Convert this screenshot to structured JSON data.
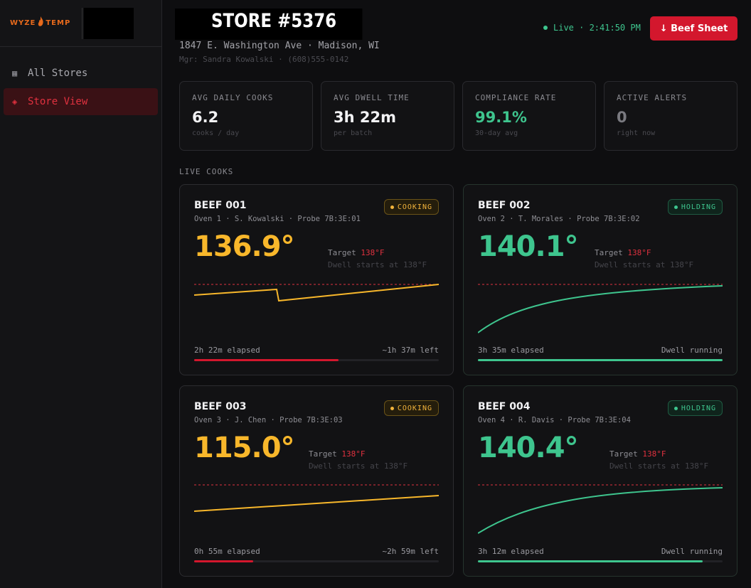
{
  "brand": {
    "name_left": "WYZE",
    "name_right": "TEMP",
    "flame": "flame-icon"
  },
  "sidebar": {
    "items": [
      {
        "label": "All Stores",
        "icon": "grid-icon",
        "active": false
      },
      {
        "label": "Store View",
        "icon": "diamond-icon",
        "active": true
      }
    ]
  },
  "header": {
    "title": "STORE #5376",
    "address": "1847 E. Washington Ave · Madison, WI",
    "manager": "Mgr: Sandra Kowalski · (608)555-0142",
    "live_label": "Live · 2:41:50 PM",
    "button_label": "↓ Beef Sheet"
  },
  "stats": [
    {
      "label": "AVG DAILY COOKS",
      "value": "6.2",
      "sub": "cooks / day"
    },
    {
      "label": "AVG DWELL TIME",
      "value": "3h 22m",
      "sub": "per batch"
    },
    {
      "label": "COMPLIANCE RATE",
      "value": "99.1%",
      "sub": "30-day avg"
    },
    {
      "label": "ACTIVE ALERTS",
      "value": "0",
      "sub": "right now"
    }
  ],
  "section_label": "LIVE COOKS",
  "cooks": [
    {
      "name": "BEEF 001",
      "meta": "Oven 1 · S. Kowalski · Probe 7B:3E:01",
      "status": "COOKING",
      "temp": "136.9°",
      "target_label": "Target",
      "target_value": "138°F",
      "dwell_text": "Dwell starts at 138°F",
      "elapsed": "2h 22m elapsed",
      "remaining": "~1h 37m left",
      "progress": 0.59
    },
    {
      "name": "BEEF 002",
      "meta": "Oven 2 · T. Morales · Probe 7B:3E:02",
      "status": "HOLDING",
      "temp": "140.1°",
      "target_label": "Target",
      "target_value": "138°F",
      "dwell_text": "Dwell starts at 138°F",
      "elapsed": "3h 35m elapsed",
      "remaining": "Dwell running",
      "progress": 1.0
    },
    {
      "name": "BEEF 003",
      "meta": "Oven 3 · J. Chen · Probe 7B:3E:03",
      "status": "COOKING",
      "temp": "115.0°",
      "target_label": "Target",
      "target_value": "138°F",
      "dwell_text": "Dwell starts at 138°F",
      "elapsed": "0h 55m elapsed",
      "remaining": "~2h 59m left",
      "progress": 0.24
    },
    {
      "name": "BEEF 004",
      "meta": "Oven 4 · R. Davis · Probe 7B:3E:04",
      "status": "HOLDING",
      "temp": "140.4°",
      "target_label": "Target",
      "target_value": "138°F",
      "dwell_text": "Dwell starts at 138°F",
      "elapsed": "3h 12m elapsed",
      "remaining": "Dwell running",
      "progress": 0.92
    }
  ],
  "colors": {
    "accent": "#d3172d",
    "cooking": "#f8b72b",
    "holding": "#3ec58e",
    "target_line": "#e0313f"
  }
}
